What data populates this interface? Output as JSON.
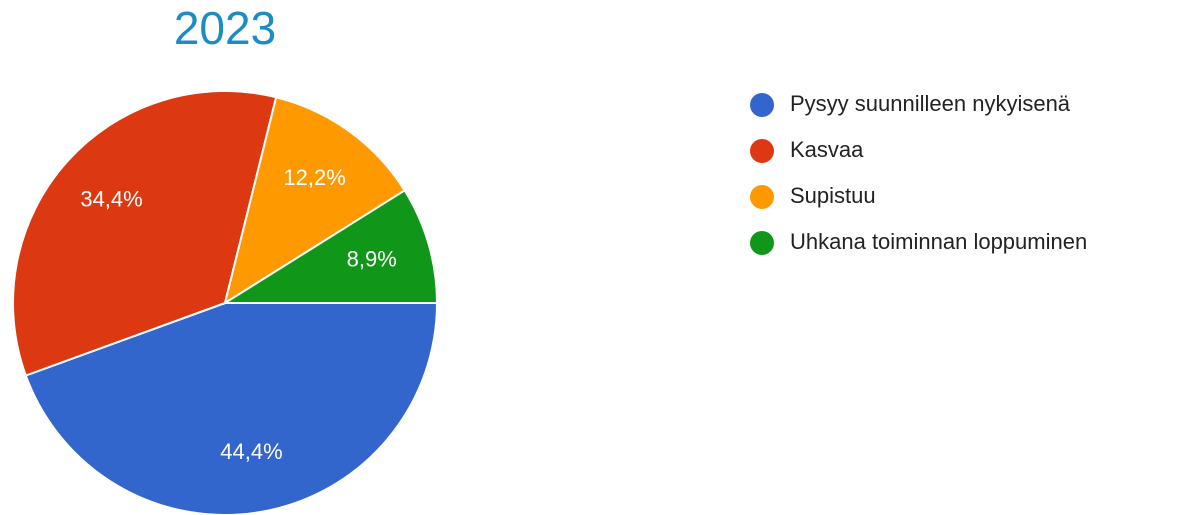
{
  "chart_data": {
    "type": "pie",
    "title": "2023",
    "categories": [
      "Pysyy suunnilleen nykyisenä",
      "Kasvaa",
      "Supistuu",
      "Uhkana toiminnan loppuminen"
    ],
    "values": [
      44.4,
      34.4,
      12.2,
      8.9
    ],
    "value_labels": [
      "44,4%",
      "34,4%",
      "12,2%",
      "8,9%"
    ],
    "colors": [
      "#3366cc",
      "#dc3912",
      "#ff9900",
      "#109618"
    ],
    "legend": "right"
  }
}
